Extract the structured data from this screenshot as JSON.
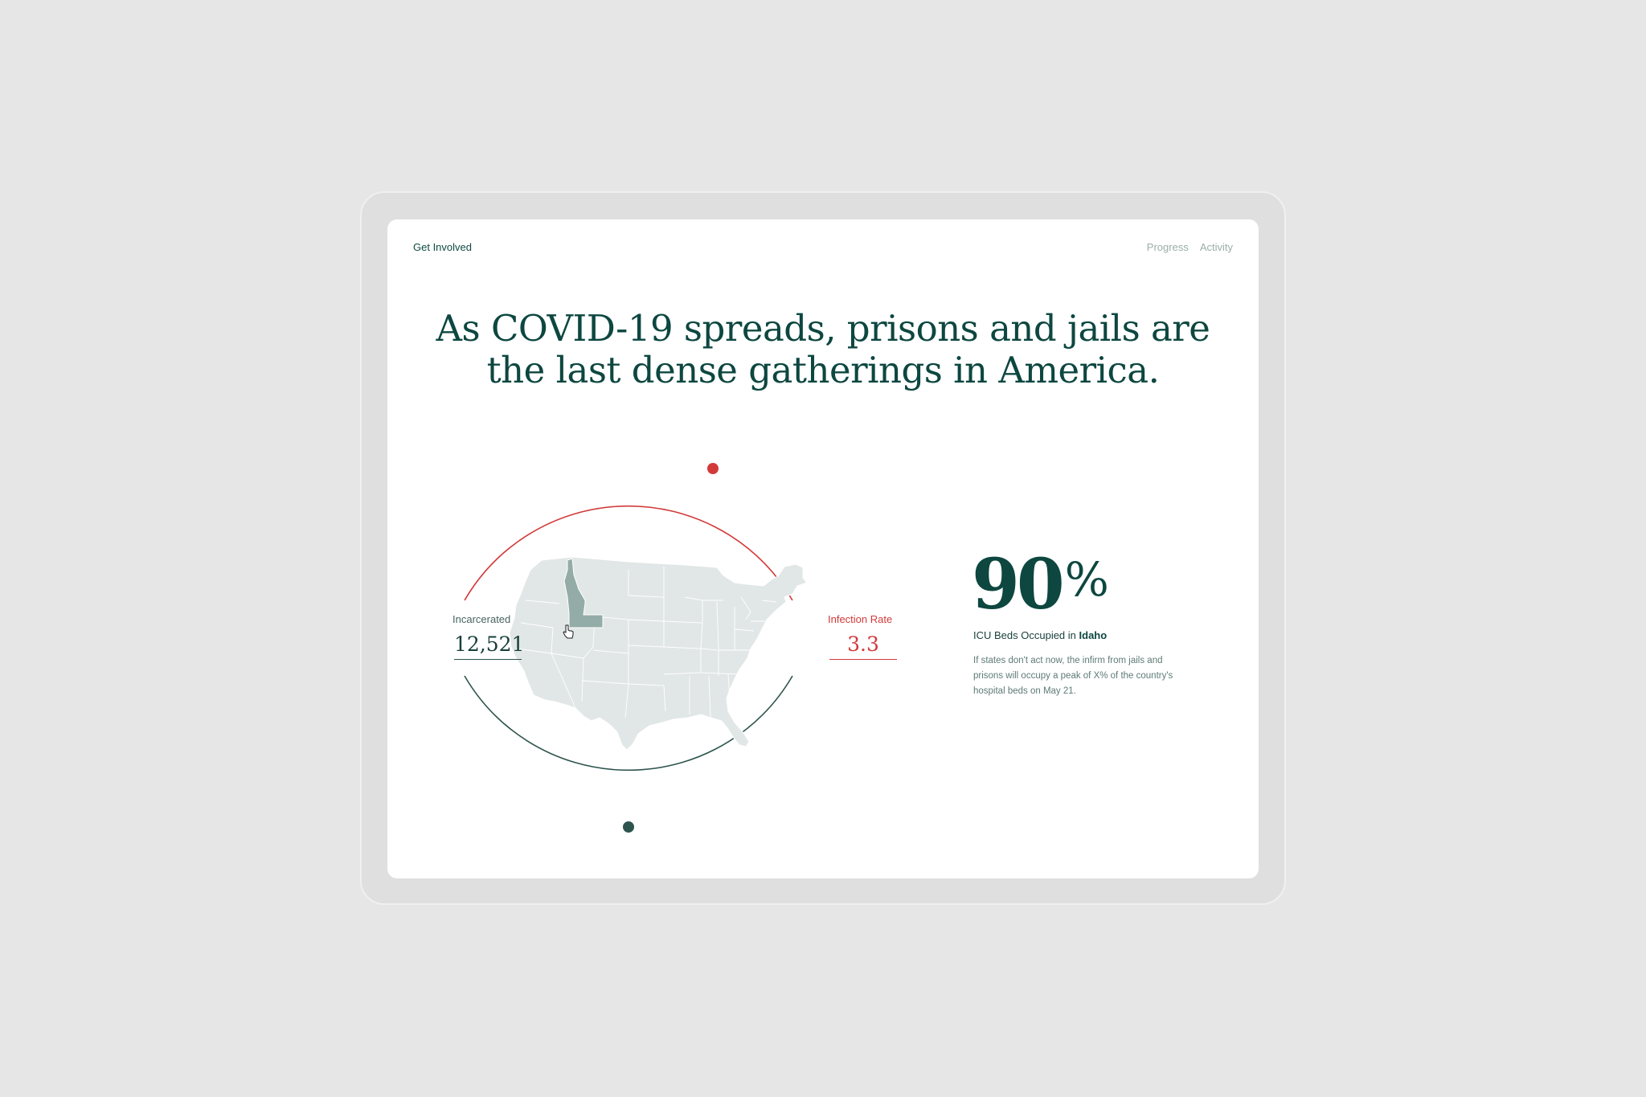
{
  "nav": {
    "left_link": "Get Involved",
    "right_links": [
      "Progress",
      "Activity"
    ]
  },
  "headline": {
    "line1": "As COVID-19 spreads, prisons and jails are",
    "line2": "the last dense gatherings in America."
  },
  "metrics": {
    "incarcerated_label": "Incarcerated",
    "incarcerated_value": "12,521",
    "infection_label": "Infection Rate",
    "infection_value": "3.3"
  },
  "map": {
    "highlighted_state": "Idaho"
  },
  "stat": {
    "value": "90",
    "unit": "%",
    "caption_prefix": "ICU Beds Occupied in ",
    "caption_state": "Idaho",
    "body": "If states don't act now, the infirm from jails and prisons will occupy a peak of X% of the country's hospital beds on May 21."
  },
  "colors": {
    "primary": "#0d4740",
    "accent_red": "#d23a3a",
    "map_fill": "#e1e7e6",
    "map_highlight": "#94aca8"
  }
}
